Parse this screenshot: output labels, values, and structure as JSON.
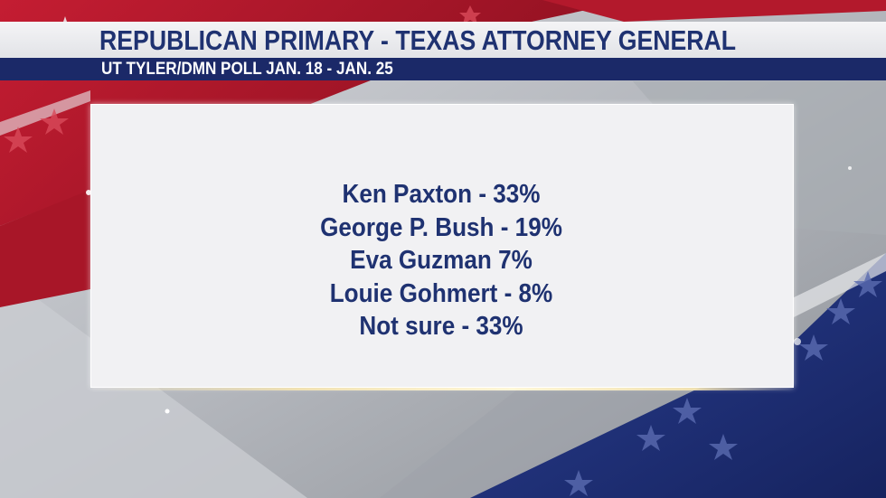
{
  "header": {
    "title": "REPUBLICAN PRIMARY - TEXAS ATTORNEY GENERAL",
    "subtitle": "UT TYLER/DMN POLL JAN. 18 - JAN. 25"
  },
  "results": [
    "Ken Paxton - 33%",
    "George P. Bush - 19%",
    "Eva Guzman 7%",
    "Louie Gohmert - 8%",
    "Not sure - 33%"
  ],
  "colors": {
    "title_text": "#1f3271",
    "subtitle_bar": "#1b2968",
    "flag_red": "#b3192c",
    "flag_blue": "#1d2f78",
    "panel": "#f1f1f3"
  }
}
